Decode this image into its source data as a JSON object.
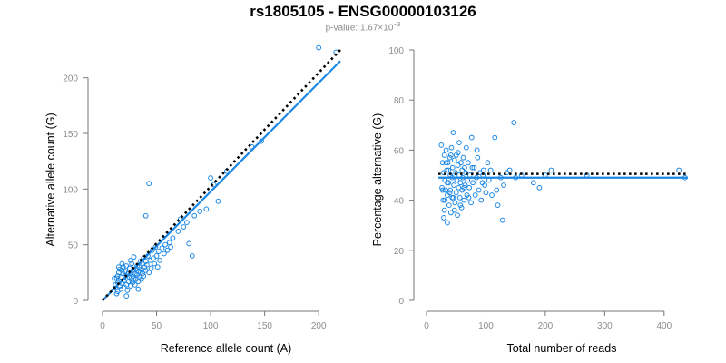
{
  "title": "rs1805105 - ENSG00000103126",
  "subtitle": {
    "prefix": "p-value: 1.67×10",
    "exponent": "−3"
  },
  "colors": {
    "points": "#1e88e5",
    "fit_line": "#1e88e5",
    "reference_line": "#000000",
    "axis": "#777777",
    "tick_text": "#8c8c8c"
  },
  "chart_data": [
    {
      "type": "scatter",
      "xlabel": "Reference allele count (A)",
      "ylabel": "Alternative allele count (G)",
      "xlim": [
        0,
        220
      ],
      "ylim": [
        0,
        225
      ],
      "xticks": [
        0,
        50,
        100,
        150,
        200
      ],
      "yticks": [
        0,
        50,
        100,
        150,
        200
      ],
      "points": [
        [
          12,
          14
        ],
        [
          13,
          20
        ],
        [
          14,
          22
        ],
        [
          14,
          16
        ],
        [
          15,
          25
        ],
        [
          15,
          18
        ],
        [
          16,
          13
        ],
        [
          16,
          28
        ],
        [
          17,
          10
        ],
        [
          17,
          21
        ],
        [
          18,
          27
        ],
        [
          18,
          15
        ],
        [
          19,
          24
        ],
        [
          19,
          30
        ],
        [
          20,
          18
        ],
        [
          20,
          12
        ],
        [
          21,
          22
        ],
        [
          21,
          26
        ],
        [
          22,
          14
        ],
        [
          22,
          31
        ],
        [
          23,
          20
        ],
        [
          23,
          9
        ],
        [
          24,
          25
        ],
        [
          24,
          17
        ],
        [
          25,
          29
        ],
        [
          25,
          21
        ],
        [
          26,
          13
        ],
        [
          26,
          24
        ],
        [
          27,
          18
        ],
        [
          27,
          33
        ],
        [
          28,
          22
        ],
        [
          28,
          16
        ],
        [
          29,
          27
        ],
        [
          29,
          20
        ],
        [
          30,
          24
        ],
        [
          30,
          14
        ],
        [
          31,
          28
        ],
        [
          31,
          19
        ],
        [
          32,
          23
        ],
        [
          32,
          31
        ],
        [
          33,
          26
        ],
        [
          33,
          17
        ],
        [
          34,
          21
        ],
        [
          34,
          30
        ],
        [
          35,
          25
        ],
        [
          35,
          35
        ],
        [
          36,
          19
        ],
        [
          36,
          28
        ],
        [
          37,
          33
        ],
        [
          37,
          24
        ],
        [
          38,
          22
        ],
        [
          38,
          38
        ],
        [
          39,
          30
        ],
        [
          40,
          27
        ],
        [
          40,
          35
        ],
        [
          41,
          32
        ],
        [
          42,
          40
        ],
        [
          43,
          25
        ],
        [
          44,
          36
        ],
        [
          45,
          29
        ],
        [
          46,
          45
        ],
        [
          47,
          38
        ],
        [
          48,
          33
        ],
        [
          49,
          48
        ],
        [
          50,
          40
        ],
        [
          51,
          30
        ],
        [
          52,
          44
        ],
        [
          53,
          36
        ],
        [
          55,
          47
        ],
        [
          57,
          42
        ],
        [
          58,
          50
        ],
        [
          60,
          45
        ],
        [
          62,
          52
        ],
        [
          63,
          48
        ],
        [
          65,
          56
        ],
        [
          70,
          62
        ],
        [
          72,
          73
        ],
        [
          75,
          66
        ],
        [
          78,
          70
        ],
        [
          80,
          51
        ],
        [
          83,
          40
        ],
        [
          85,
          76
        ],
        [
          90,
          80
        ],
        [
          96,
          82
        ],
        [
          100,
          110
        ],
        [
          103,
          104
        ],
        [
          107,
          89
        ],
        [
          115,
          116
        ],
        [
          138,
          138
        ],
        [
          147,
          143
        ],
        [
          200,
          227
        ],
        [
          216,
          223
        ],
        [
          40,
          76
        ],
        [
          43,
          105
        ],
        [
          14,
          8
        ],
        [
          15,
          30
        ],
        [
          22,
          4
        ],
        [
          18,
          33
        ],
        [
          26,
          36
        ],
        [
          33,
          10
        ],
        [
          29,
          39
        ],
        [
          11,
          20
        ],
        [
          12,
          11
        ],
        [
          13,
          6
        ]
      ],
      "fit_line": {
        "x": [
          0,
          220
        ],
        "y": [
          0,
          215
        ]
      },
      "reference_line": {
        "x": [
          0,
          220
        ],
        "y": [
          0,
          225
        ]
      },
      "grid": false,
      "legend": "none"
    },
    {
      "type": "scatter",
      "xlabel": "Total number of reads",
      "ylabel": "Percentage alternative (G)",
      "xlim": [
        0,
        440
      ],
      "ylim": [
        0,
        100
      ],
      "xticks": [
        0,
        100,
        200,
        300,
        400
      ],
      "yticks": [
        0,
        20,
        40,
        60,
        80,
        100
      ],
      "points": [
        [
          25,
          62
        ],
        [
          26,
          45
        ],
        [
          27,
          55
        ],
        [
          28,
          40
        ],
        [
          29,
          51
        ],
        [
          30,
          58
        ],
        [
          30,
          36
        ],
        [
          31,
          48
        ],
        [
          32,
          44
        ],
        [
          33,
          60
        ],
        [
          34,
          52
        ],
        [
          35,
          42
        ],
        [
          35,
          31
        ],
        [
          36,
          55
        ],
        [
          37,
          47
        ],
        [
          38,
          38
        ],
        [
          39,
          57
        ],
        [
          40,
          50
        ],
        [
          40,
          44
        ],
        [
          41,
          35
        ],
        [
          42,
          61
        ],
        [
          43,
          49
        ],
        [
          44,
          53
        ],
        [
          45,
          41
        ],
        [
          45,
          67
        ],
        [
          46,
          46
        ],
        [
          47,
          56
        ],
        [
          48,
          39
        ],
        [
          49,
          51
        ],
        [
          50,
          43
        ],
        [
          50,
          58
        ],
        [
          51,
          48
        ],
        [
          52,
          34
        ],
        [
          53,
          54
        ],
        [
          54,
          45
        ],
        [
          55,
          63
        ],
        [
          55,
          50
        ],
        [
          56,
          41
        ],
        [
          57,
          47
        ],
        [
          58,
          55
        ],
        [
          59,
          37
        ],
        [
          60,
          52
        ],
        [
          60,
          44
        ],
        [
          61,
          49
        ],
        [
          62,
          57
        ],
        [
          63,
          40
        ],
        [
          64,
          53
        ],
        [
          65,
          46
        ],
        [
          66,
          51
        ],
        [
          67,
          61
        ],
        [
          68,
          42
        ],
        [
          69,
          48
        ],
        [
          70,
          55
        ],
        [
          72,
          45
        ],
        [
          73,
          50
        ],
        [
          75,
          39
        ],
        [
          76,
          65
        ],
        [
          78,
          47
        ],
        [
          80,
          53
        ],
        [
          82,
          42
        ],
        [
          84,
          49
        ],
        [
          86,
          57
        ],
        [
          88,
          44
        ],
        [
          90,
          51
        ],
        [
          92,
          40
        ],
        [
          94,
          47
        ],
        [
          96,
          52
        ],
        [
          98,
          46
        ],
        [
          100,
          43
        ],
        [
          103,
          55
        ],
        [
          105,
          48
        ],
        [
          108,
          52
        ],
        [
          110,
          42
        ],
        [
          115,
          65
        ],
        [
          120,
          38
        ],
        [
          125,
          49
        ],
        [
          128,
          32
        ],
        [
          130,
          46
        ],
        [
          140,
          52
        ],
        [
          147,
          71
        ],
        [
          150,
          49
        ],
        [
          180,
          47
        ],
        [
          190,
          45
        ],
        [
          200,
          50
        ],
        [
          210,
          52
        ],
        [
          270,
          50
        ],
        [
          425,
          52
        ],
        [
          435,
          49
        ],
        [
          27,
          44
        ],
        [
          29,
          33
        ],
        [
          31,
          40
        ],
        [
          33,
          55
        ],
        [
          35,
          47
        ],
        [
          37,
          52
        ],
        [
          39,
          43
        ],
        [
          41,
          58
        ],
        [
          43,
          41
        ],
        [
          47,
          36
        ],
        [
          53,
          59
        ],
        [
          57,
          38
        ],
        [
          63,
          45
        ],
        [
          71,
          41
        ],
        [
          77,
          53
        ],
        [
          85,
          60
        ],
        [
          95,
          50
        ],
        [
          118,
          44
        ],
        [
          135,
          51
        ],
        [
          160,
          50
        ]
      ],
      "fit_line": {
        "x": [
          20,
          440
        ],
        "y": [
          49,
          49
        ]
      },
      "reference_line": {
        "x": [
          20,
          440
        ],
        "y": [
          50.5,
          50.5
        ]
      },
      "grid": false,
      "legend": "none"
    }
  ]
}
